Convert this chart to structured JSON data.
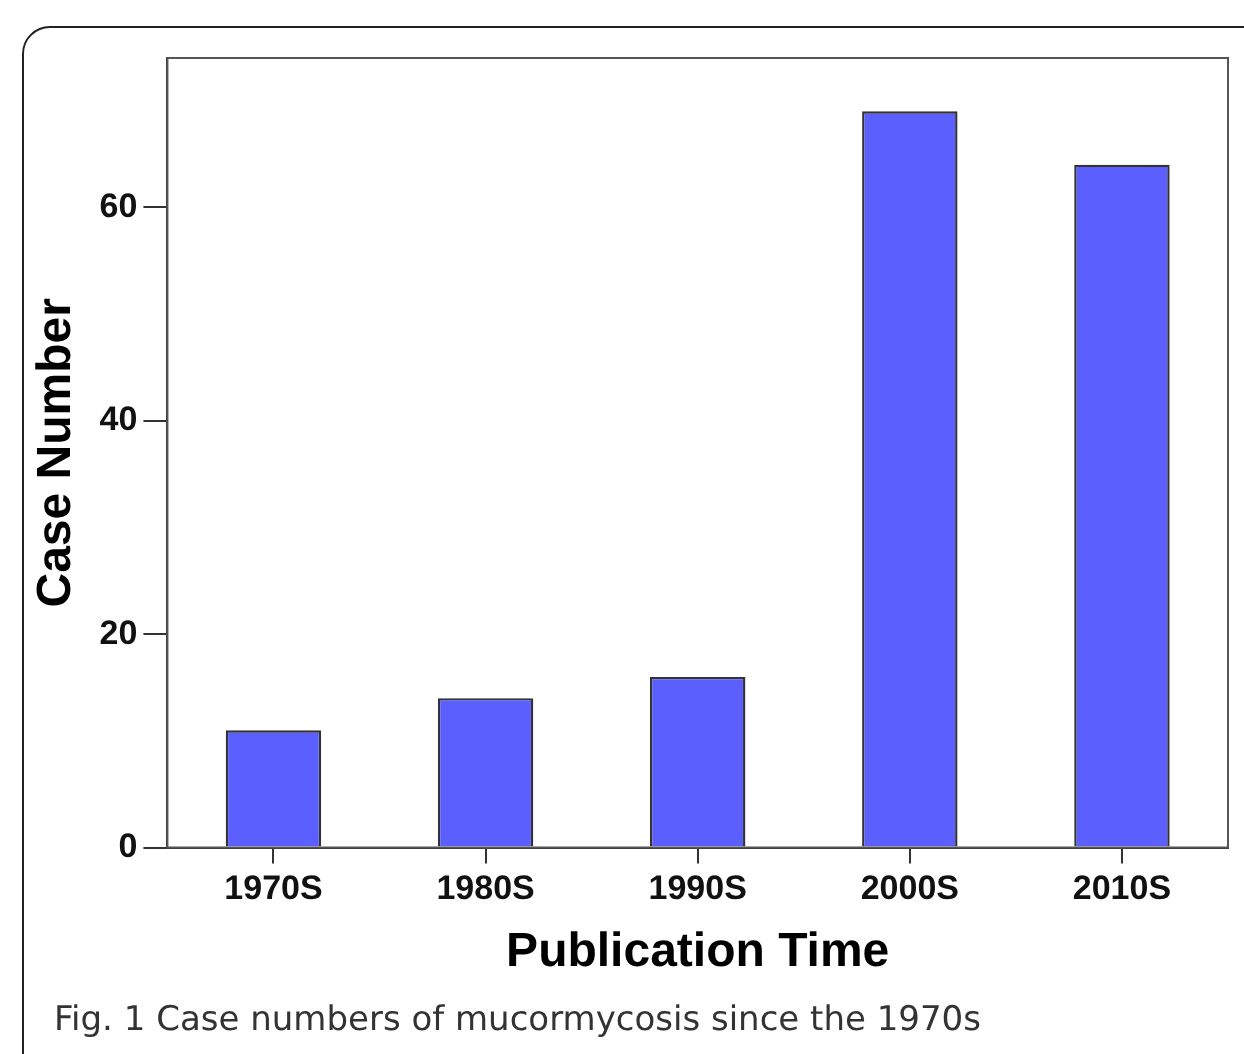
{
  "chart_data": {
    "type": "bar",
    "xlabel": "Publication Time",
    "ylabel": "Case Number",
    "categories": [
      "1970S",
      "1980S",
      "1990S",
      "2000S",
      "2010S"
    ],
    "values": [
      11,
      14,
      16,
      69,
      64
    ],
    "color": "#5b5ffe",
    "ylim": [
      0,
      74
    ],
    "yticks": [
      0,
      20,
      40,
      60
    ],
    "grid": false,
    "legend": false,
    "annotations": [
      "Fig. 1 Case numbers of mucormycosis since the 1970s"
    ]
  }
}
